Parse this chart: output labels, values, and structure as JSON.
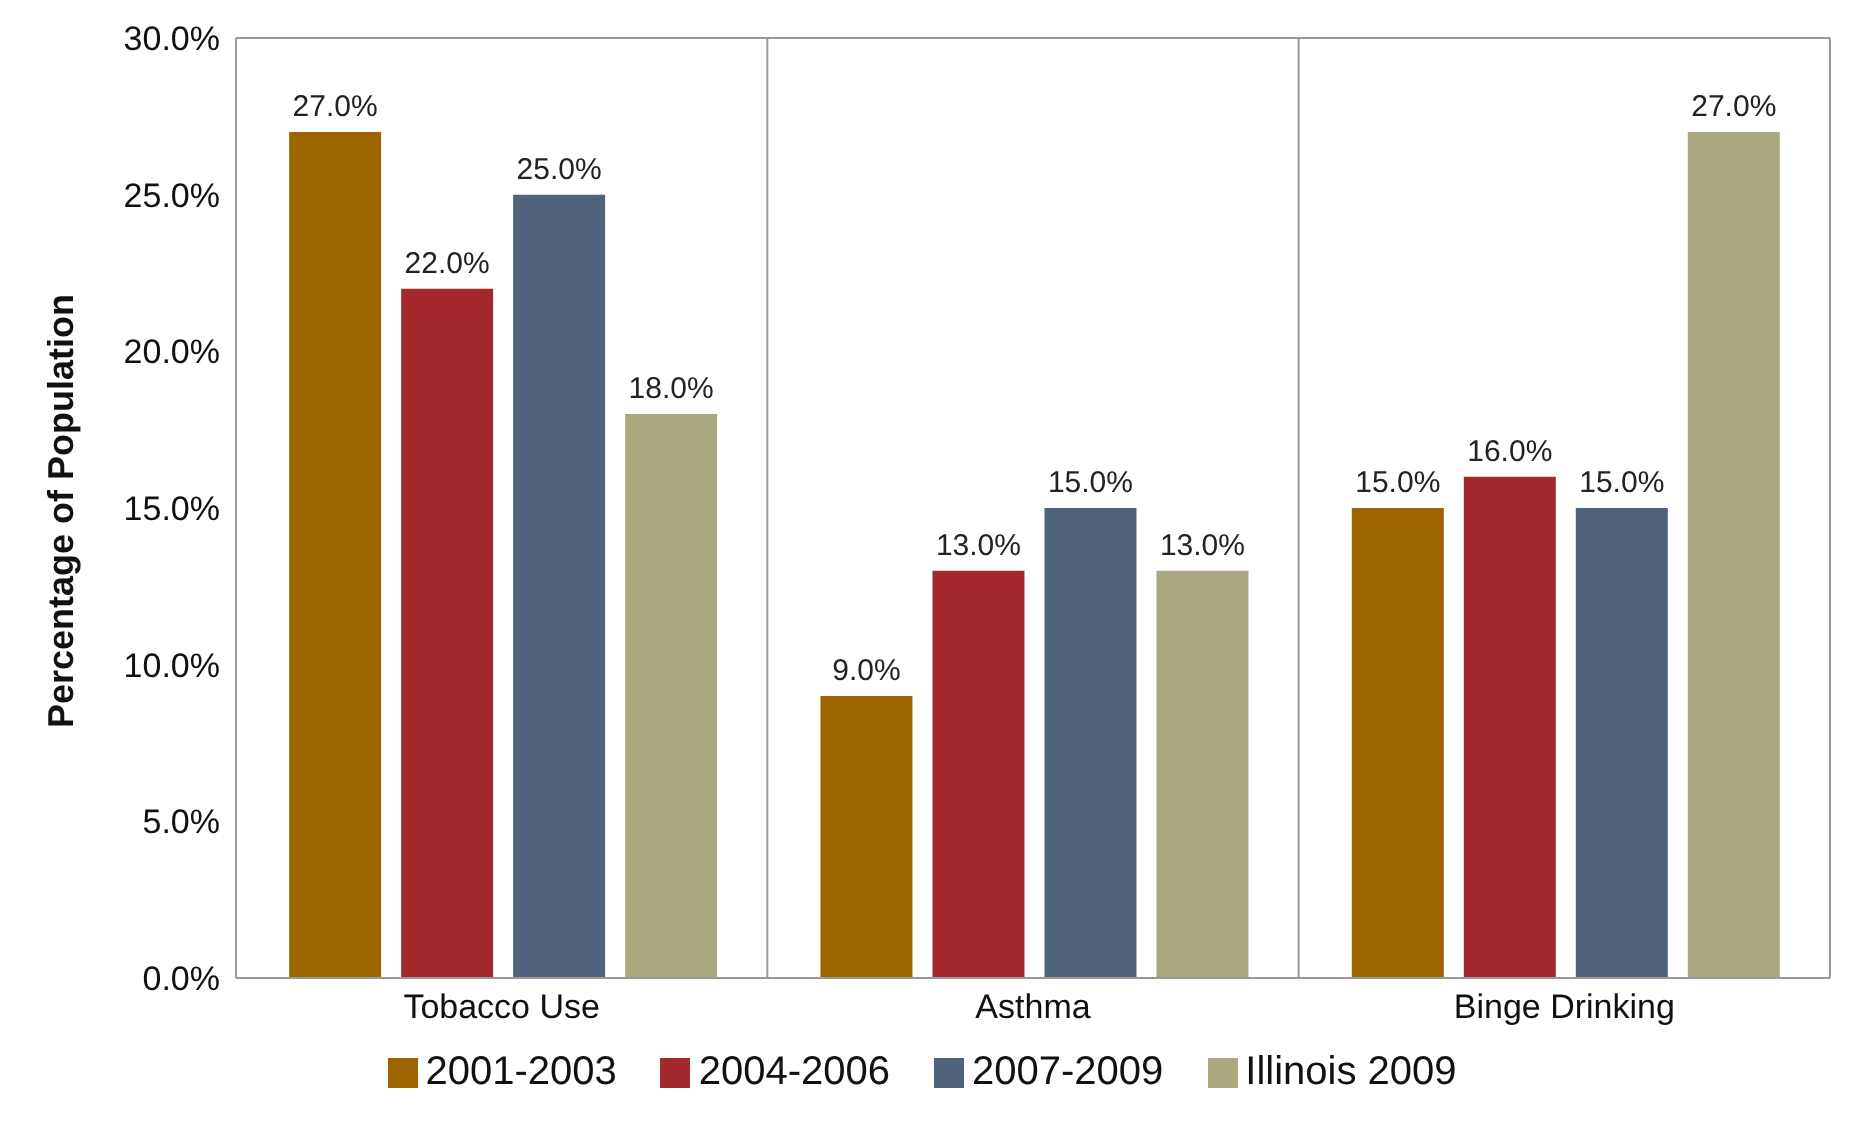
{
  "chart_data": {
    "type": "bar",
    "ylabel": "Percentage of Population",
    "categories": [
      "Tobacco Use",
      "Asthma",
      "Binge Drinking"
    ],
    "series": [
      {
        "name": "2001-2003",
        "color": "#9c6500",
        "values": [
          27,
          9,
          15
        ],
        "value_labels": [
          "27.0%",
          "9.0%",
          "15.0%"
        ]
      },
      {
        "name": "2004-2006",
        "color": "#a3292d",
        "values": [
          22,
          13,
          16
        ],
        "value_labels": [
          "22.0%",
          "13.0%",
          "16.0%"
        ]
      },
      {
        "name": "2007-2009",
        "color": "#4f647c",
        "values": [
          25,
          15,
          15
        ],
        "value_labels": [
          "25.0%",
          "15.0%",
          "15.0%"
        ]
      },
      {
        "name": "Illinois 2009",
        "color": "#aaa87e",
        "values": [
          18,
          13,
          27
        ],
        "value_labels": [
          "18.0%",
          "13.0%",
          "27.0%"
        ]
      }
    ],
    "ylim": [
      0,
      30
    ],
    "yticks": [
      {
        "value": 0,
        "label": "0.0%"
      },
      {
        "value": 5,
        "label": "5.0%"
      },
      {
        "value": 10,
        "label": "10.0%"
      },
      {
        "value": 15,
        "label": "15.0%"
      },
      {
        "value": 20,
        "label": "20.0%"
      },
      {
        "value": 25,
        "label": "25.0%"
      },
      {
        "value": 30,
        "label": "30.0%"
      }
    ],
    "grid": "x",
    "legend": "bottom"
  }
}
